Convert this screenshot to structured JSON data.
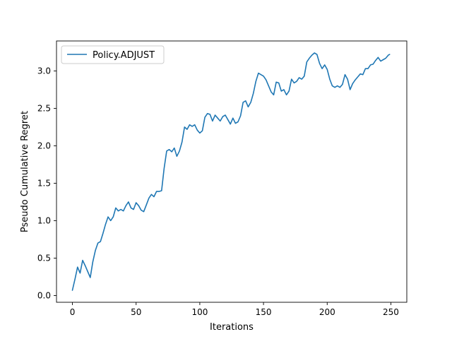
{
  "chart_data": {
    "type": "line",
    "title": "",
    "xlabel": "Iterations",
    "ylabel": "Pseudo Cumulative Regret",
    "xlim": [
      -12.5,
      262.5
    ],
    "ylim": [
      -0.09,
      3.4
    ],
    "xticks": [
      0,
      50,
      100,
      150,
      200,
      250
    ],
    "xtick_labels": [
      "0",
      "50",
      "100",
      "150",
      "200",
      "250"
    ],
    "yticks": [
      0.0,
      0.5,
      1.0,
      1.5,
      2.0,
      2.5,
      3.0
    ],
    "ytick_labels": [
      "0.0",
      "0.5",
      "1.0",
      "1.5",
      "2.0",
      "2.5",
      "3.0"
    ],
    "grid": false,
    "legend_position": "top-left",
    "series": [
      {
        "name": "Policy.ADJUST",
        "color": "#1f77b4",
        "x": [
          0,
          2,
          4,
          6,
          8,
          10,
          12,
          14,
          16,
          18,
          20,
          22,
          24,
          26,
          28,
          30,
          32,
          34,
          36,
          38,
          40,
          42,
          44,
          46,
          48,
          50,
          52,
          54,
          56,
          58,
          60,
          62,
          64,
          66,
          68,
          70,
          72,
          74,
          76,
          78,
          80,
          82,
          84,
          86,
          88,
          90,
          92,
          94,
          96,
          98,
          100,
          102,
          104,
          106,
          108,
          110,
          112,
          114,
          116,
          118,
          120,
          122,
          124,
          126,
          128,
          130,
          132,
          134,
          136,
          138,
          140,
          142,
          144,
          146,
          148,
          150,
          152,
          154,
          156,
          158,
          160,
          162,
          164,
          166,
          168,
          170,
          172,
          174,
          176,
          178,
          180,
          182,
          184,
          186,
          188,
          190,
          192,
          194,
          196,
          198,
          200,
          202,
          204,
          206,
          208,
          210,
          212,
          214,
          216,
          218,
          220,
          222,
          224,
          226,
          228,
          230,
          232,
          234,
          236,
          238,
          240,
          242,
          244,
          246,
          248,
          249
        ],
        "values": [
          0.07,
          0.22,
          0.38,
          0.3,
          0.47,
          0.4,
          0.32,
          0.24,
          0.45,
          0.6,
          0.7,
          0.72,
          0.83,
          0.95,
          1.05,
          1.0,
          1.05,
          1.17,
          1.13,
          1.15,
          1.13,
          1.2,
          1.25,
          1.17,
          1.15,
          1.24,
          1.2,
          1.14,
          1.12,
          1.21,
          1.3,
          1.35,
          1.32,
          1.39,
          1.39,
          1.4,
          1.7,
          1.93,
          1.95,
          1.92,
          1.97,
          1.86,
          1.93,
          2.05,
          2.25,
          2.22,
          2.28,
          2.26,
          2.28,
          2.21,
          2.17,
          2.2,
          2.38,
          2.43,
          2.42,
          2.33,
          2.41,
          2.37,
          2.33,
          2.39,
          2.41,
          2.35,
          2.29,
          2.37,
          2.3,
          2.32,
          2.4,
          2.58,
          2.6,
          2.52,
          2.58,
          2.7,
          2.86,
          2.97,
          2.95,
          2.93,
          2.88,
          2.8,
          2.72,
          2.68,
          2.85,
          2.84,
          2.73,
          2.75,
          2.68,
          2.73,
          2.89,
          2.84,
          2.86,
          2.91,
          2.89,
          2.93,
          3.12,
          3.17,
          3.21,
          3.24,
          3.22,
          3.1,
          3.03,
          3.08,
          3.02,
          2.89,
          2.8,
          2.78,
          2.8,
          2.78,
          2.82,
          2.95,
          2.89,
          2.75,
          2.83,
          2.88,
          2.92,
          2.96,
          2.95,
          3.03,
          3.03,
          3.08,
          3.09,
          3.14,
          3.18,
          3.13,
          3.15,
          3.17,
          3.21,
          3.22
        ]
      }
    ]
  }
}
